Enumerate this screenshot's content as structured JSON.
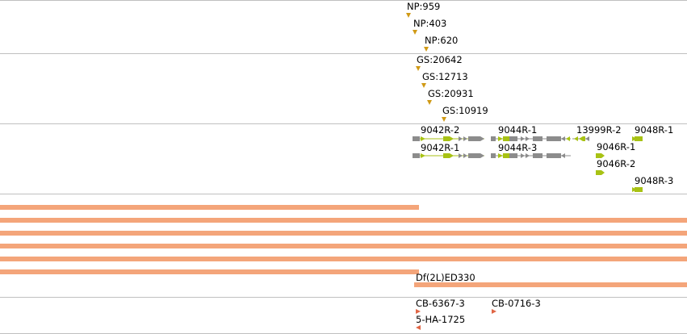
{
  "colors": {
    "insertion": "#d09a16",
    "gene_gray": "#8c8c8c",
    "gene_green": "#a8c214",
    "deficiency": "#f4a57a",
    "construct": "#e06646",
    "divider": "#c0c0c0"
  },
  "np_track": {
    "labels": [
      "NP:959",
      "NP:403",
      "NP:620"
    ]
  },
  "gs_track": {
    "labels": [
      "GS:20642",
      "GS:12713",
      "GS:20931",
      "GS:10919"
    ]
  },
  "gene_track": {
    "labels": [
      "9042R-2",
      "9042R-1",
      "9044R-1",
      "9044R-3",
      "13999R-2",
      "9048R-1",
      "9046R-1",
      "9046R-2",
      "9048R-3"
    ]
  },
  "deficiency_track": {
    "label": "Df(2L)ED330"
  },
  "construct_track": {
    "labels": [
      "CB-6367-3",
      "CB-0716-3",
      "5-HA-1725"
    ]
  }
}
